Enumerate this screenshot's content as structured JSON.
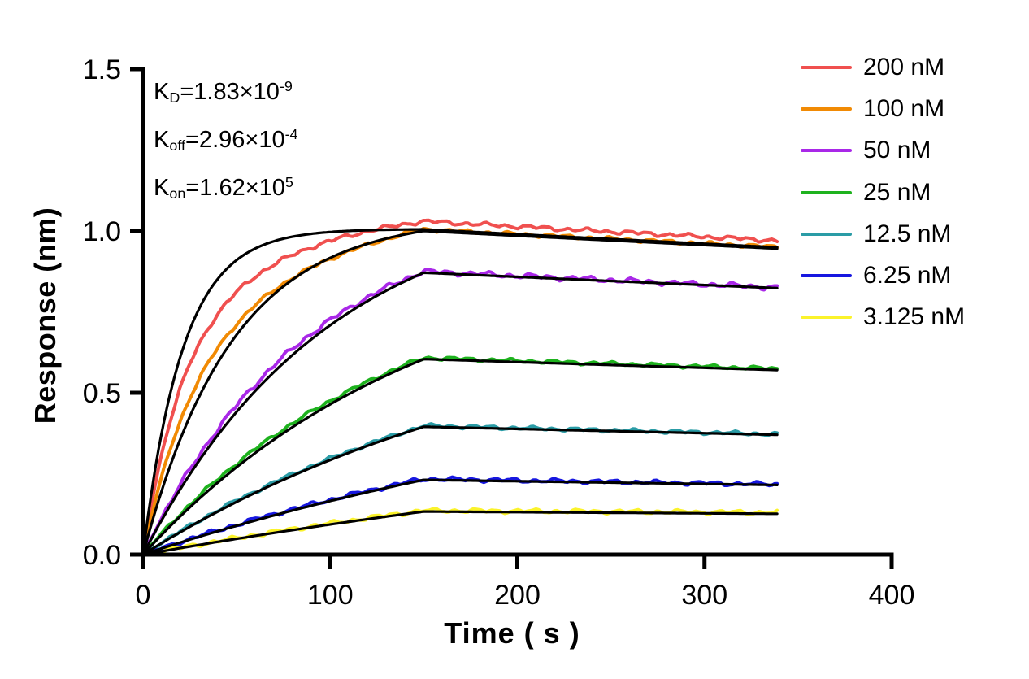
{
  "chart_data": {
    "type": "line",
    "title": "",
    "xlabel": "Time ( s )",
    "ylabel": "Response (nm)",
    "xlim": [
      0,
      400
    ],
    "ylim": [
      0.0,
      1.5
    ],
    "grid": false,
    "legend_position": "top-right",
    "axis_color": "#000000",
    "fit_line_color": "#000000",
    "x_ticks": [
      {
        "label": "0",
        "value": 0
      },
      {
        "label": "100",
        "value": 100
      },
      {
        "label": "200",
        "value": 200
      },
      {
        "label": "300",
        "value": 300
      },
      {
        "label": "400",
        "value": 400
      }
    ],
    "y_ticks": [
      {
        "label": "0.0",
        "value": 0.0
      },
      {
        "label": "0.5",
        "value": 0.5
      },
      {
        "label": "1.0",
        "value": 1.0
      },
      {
        "label": "1.5",
        "value": 1.5
      }
    ],
    "annotations": [
      {
        "base": "K",
        "sub": "D",
        "eq": "=1.83×10",
        "sup": "-9"
      },
      {
        "base": "K",
        "sub": "off",
        "eq": "=2.96×10",
        "sup": "-4"
      },
      {
        "base": "K",
        "sub": "on",
        "eq": "=1.62×10",
        "sup": "5"
      }
    ],
    "phases": {
      "association_end_s": 150,
      "curve_end_s": 340
    },
    "series": [
      {
        "label": "200 nM",
        "concentration_nM": 200,
        "color": "#F0504F",
        "response_peak": 1.03,
        "response_end": 0.97,
        "assoc": {
          "components": [
            {
              "k": 0.05,
              "w": 0.6
            },
            {
              "k": 0.013,
              "w": 0.4
            }
          ]
        },
        "fit": {
          "k": 0.047,
          "peak": 1.005,
          "end": 0.949
        }
      },
      {
        "label": "100 nM",
        "concentration_nM": 100,
        "color": "#F18A04",
        "response_peak": 1.005,
        "response_end": 0.95,
        "assoc": {
          "components": [
            {
              "k": 0.04,
              "w": 0.5
            },
            {
              "k": 0.01,
              "w": 0.5
            }
          ]
        },
        "fit": {
          "k": 0.021,
          "peak": 1.0,
          "end": 0.945
        }
      },
      {
        "label": "50 nM",
        "concentration_nM": 50,
        "color": "#A928E8",
        "response_peak": 0.875,
        "response_end": 0.825,
        "assoc": {
          "components": [
            {
              "k": 0.0112,
              "w": 1
            }
          ]
        },
        "fit": {
          "k": 0.01,
          "peak": 0.871,
          "end": 0.823
        }
      },
      {
        "label": "25 nM",
        "concentration_nM": 25,
        "color": "#1EB21E",
        "response_peak": 0.608,
        "response_end": 0.574,
        "assoc": {
          "components": [
            {
              "k": 0.0075,
              "w": 1
            }
          ]
        },
        "fit": {
          "k": 0.0066,
          "peak": 0.604,
          "end": 0.57
        }
      },
      {
        "label": "12.5 nM",
        "concentration_nM": 12.5,
        "color": "#2A9CA6",
        "response_peak": 0.398,
        "response_end": 0.372,
        "assoc": {
          "components": [
            {
              "k": 0.005,
              "w": 1
            }
          ]
        },
        "fit": {
          "k": 0.0046,
          "peak": 0.395,
          "end": 0.37
        }
      },
      {
        "label": "6.25 nM",
        "concentration_nM": 6.25,
        "color": "#1717E0",
        "response_peak": 0.234,
        "response_end": 0.217,
        "assoc": {
          "components": [
            {
              "k": 0.0036,
              "w": 1
            }
          ]
        },
        "fit": {
          "k": 0.0031,
          "peak": 0.231,
          "end": 0.215
        }
      },
      {
        "label": "3.125 nM",
        "concentration_nM": 3.125,
        "color": "#FBF32B",
        "response_peak": 0.136,
        "response_end": 0.13,
        "assoc": {
          "components": [
            {
              "k": 0.0025,
              "w": 1
            }
          ]
        },
        "fit": {
          "k": 0.002,
          "peak": 0.133,
          "end": 0.126
        }
      }
    ]
  }
}
